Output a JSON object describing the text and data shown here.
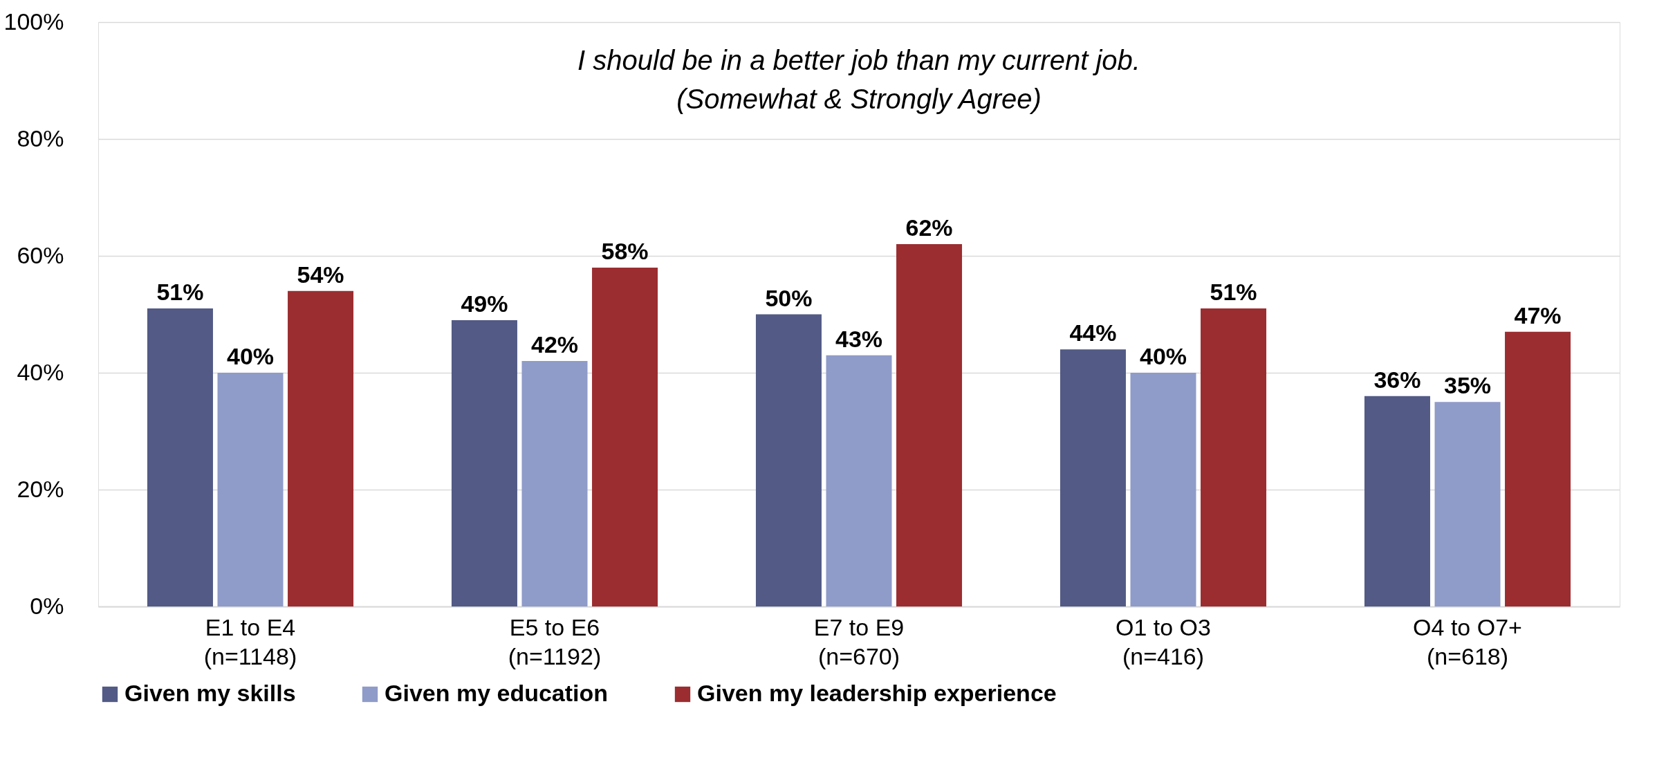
{
  "chart_data": {
    "type": "bar",
    "title": "I should be in a better job than my current job.\n(Somewhat & Strongly Agree)",
    "categories": [
      "E1 to E4\n(n=1148)",
      "E5 to E6\n(n=1192)",
      "E7 to E9\n(n=670)",
      "O1 to O3\n(n=416)",
      "O4 to O7+\n(n=618)"
    ],
    "series": [
      {
        "name": "Given my skills",
        "color": "#525a85",
        "values": [
          51,
          49,
          50,
          44,
          36
        ],
        "value_labels": [
          "51%",
          "49%",
          "50%",
          "44%",
          "36%"
        ]
      },
      {
        "name": "Given my education",
        "color": "#8f9bc8",
        "values": [
          40,
          42,
          43,
          40,
          35
        ],
        "value_labels": [
          "40%",
          "42%",
          "43%",
          "40%",
          "35%"
        ]
      },
      {
        "name": "Given my leadership experience",
        "color": "#9b2d30",
        "values": [
          54,
          58,
          62,
          51,
          47
        ],
        "value_labels": [
          "54%",
          "58%",
          "62%",
          "51%",
          "47%"
        ]
      }
    ],
    "ylim": [
      0,
      100
    ],
    "yticks": [
      {
        "value": 0,
        "label": "0%"
      },
      {
        "value": 20,
        "label": "20%"
      },
      {
        "value": 40,
        "label": "40%"
      },
      {
        "value": 60,
        "label": "60%"
      },
      {
        "value": 80,
        "label": "80%"
      },
      {
        "value": 100,
        "label": "100%"
      }
    ],
    "grid": "y",
    "legend": "bottom"
  }
}
